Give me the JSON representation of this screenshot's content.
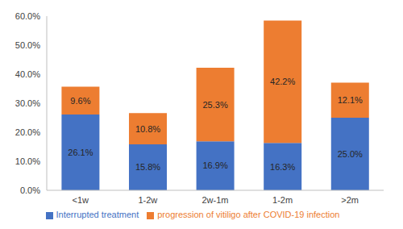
{
  "chart_data": {
    "type": "bar",
    "categories": [
      "<1w",
      "1-2w",
      "2w-1m",
      "1-2m",
      ">2m"
    ],
    "series": [
      {
        "name": "Interrupted treatment",
        "color": "#4472c4",
        "values": [
          26.1,
          15.8,
          16.9,
          16.3,
          25.0
        ],
        "value_labels": [
          "26.1%",
          "15.8%",
          "16.9%",
          "16.3%",
          "25.0%"
        ]
      },
      {
        "name": "progression of vitiligo after COVID-19 infection",
        "color": "#ed7d31",
        "values": [
          9.6,
          10.8,
          25.3,
          42.2,
          12.1
        ],
        "value_labels": [
          "9.6%",
          "10.8%",
          "25.3%",
          "42.2%",
          "12.1%"
        ]
      }
    ],
    "ylim": [
      0,
      60
    ],
    "yticks": [
      {
        "value": 0,
        "label": "0.0%"
      },
      {
        "value": 10,
        "label": "10.0%"
      },
      {
        "value": 20,
        "label": "20.0%"
      },
      {
        "value": 30,
        "label": "30.0%"
      },
      {
        "value": 40,
        "label": "40.0%"
      },
      {
        "value": 50,
        "label": "50.0%"
      },
      {
        "value": 60,
        "label": "60.0%"
      }
    ],
    "stacked": true,
    "data_labels": true,
    "grid": false,
    "legend": "bottom"
  }
}
